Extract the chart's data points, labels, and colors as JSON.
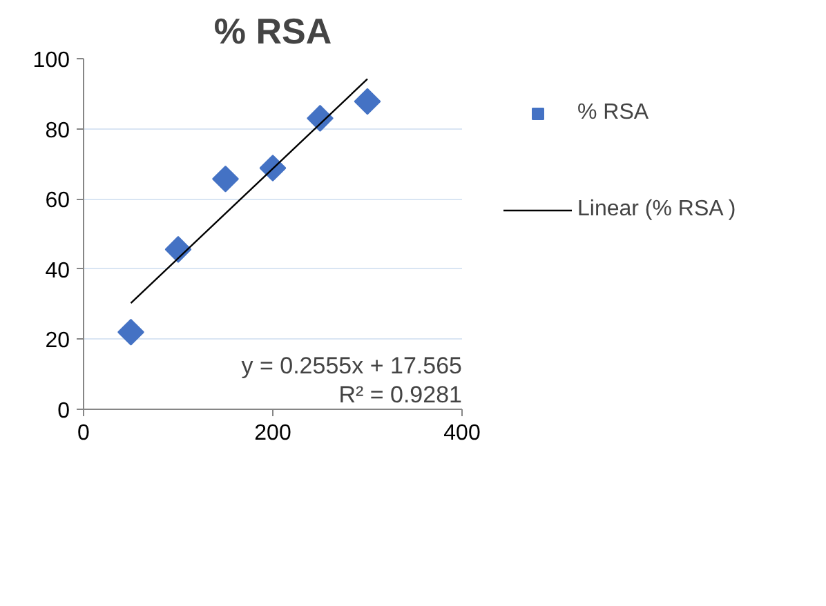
{
  "chart_data": {
    "type": "scatter",
    "title": "% RSA",
    "x": [
      50,
      100,
      150,
      200,
      250,
      300
    ],
    "series": [
      {
        "name": "% RSA",
        "color": "#4472c4",
        "values": [
          22.0,
          45.6,
          65.7,
          68.8,
          83.0,
          87.8
        ],
        "marker": "diamond"
      },
      {
        "name": "Linear (% RSA )",
        "type": "line",
        "color": "#000000",
        "x": [
          50,
          300
        ],
        "values": [
          30.3,
          94.2
        ],
        "marker": "none"
      }
    ],
    "xlim": [
      0,
      400
    ],
    "xticks": [
      0,
      200,
      400
    ],
    "ylim": [
      0,
      100
    ],
    "yticks": [
      0,
      20,
      40,
      60,
      80,
      100
    ],
    "grid": "y",
    "legend": "right",
    "annotations": [
      "y = 0.2555x + 17.565",
      "R² = 0.9281"
    ]
  }
}
